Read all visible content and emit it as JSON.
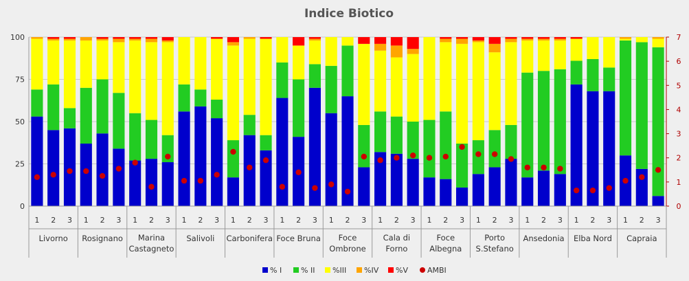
{
  "chart_data": {
    "type": "bar",
    "stacked": true,
    "title": "Indice Biotico",
    "y_left": {
      "range": [
        0,
        100
      ],
      "ticks": [
        "0",
        "25",
        "50",
        "75",
        "100"
      ]
    },
    "y_right": {
      "range": [
        0,
        7
      ],
      "ticks": [
        "0",
        "1",
        "2",
        "3",
        "4",
        "5",
        "6",
        "7"
      ]
    },
    "grid": "horizontal",
    "legend_position": "bottom",
    "sites": [
      {
        "name": [
          "Livorno"
        ]
      },
      {
        "name": [
          "Rosignano"
        ]
      },
      {
        "name": [
          "Marina",
          "Castagneto"
        ]
      },
      {
        "name": [
          "Salivoli"
        ]
      },
      {
        "name": [
          "Carbonifera"
        ]
      },
      {
        "name": [
          "Foce Bruna"
        ]
      },
      {
        "name": [
          "Foce",
          "Ombrone"
        ]
      },
      {
        "name": [
          "Cala di",
          "Forno"
        ]
      },
      {
        "name": [
          "Foce",
          "Albegna"
        ]
      },
      {
        "name": [
          "Porto",
          "S.Stefano"
        ]
      },
      {
        "name": [
          "Ansedonia"
        ]
      },
      {
        "name": [
          "Elba Nord"
        ]
      },
      {
        "name": [
          "Capraia"
        ]
      }
    ],
    "replicates": [
      "1",
      "2",
      "3"
    ],
    "series": [
      {
        "name": "% I",
        "color": "#0000cc",
        "values": [
          53,
          45,
          46,
          37,
          43,
          34,
          27,
          28,
          26,
          56,
          59,
          52,
          17,
          42,
          33,
          64,
          41,
          70,
          55,
          65,
          23,
          32,
          31,
          28,
          17,
          16,
          11,
          19,
          23,
          28,
          17,
          21,
          19,
          72,
          68,
          68,
          30,
          22,
          6
        ]
      },
      {
        "name": "% II",
        "color": "#22cc22",
        "values": [
          16,
          27,
          12,
          33,
          32,
          33,
          28,
          23,
          16,
          16,
          10,
          11,
          22,
          12,
          9,
          21,
          34,
          14,
          28,
          30,
          25,
          24,
          22,
          22,
          34,
          40,
          26,
          20,
          22,
          20,
          62,
          59,
          62,
          14,
          19,
          14,
          68,
          75,
          88
        ]
      },
      {
        "name": "%III",
        "color": "#ffff00",
        "values": [
          30,
          26,
          40,
          28,
          23,
          30,
          43,
          46,
          55,
          28,
          31,
          36,
          56,
          45,
          57,
          15,
          20,
          14,
          17,
          5,
          48,
          36,
          35,
          40,
          49,
          41,
          59,
          58,
          46,
          49,
          19,
          18,
          17,
          13,
          13,
          18,
          1,
          3,
          5
        ]
      },
      {
        "name": "%IV",
        "color": "#ffa500",
        "values": [
          1,
          1,
          1,
          2,
          1,
          2,
          1,
          2,
          1,
          0,
          0,
          0,
          2,
          1,
          0,
          0,
          0,
          1,
          0,
          0,
          0,
          4,
          7,
          3,
          0,
          2,
          3,
          1,
          5,
          2,
          1,
          1,
          1,
          0,
          0,
          0,
          1,
          0,
          1
        ]
      },
      {
        "name": "%V",
        "color": "#ff0000",
        "values": [
          0,
          1,
          1,
          0,
          1,
          1,
          1,
          1,
          2,
          0,
          0,
          1,
          3,
          0,
          1,
          0,
          5,
          1,
          0,
          0,
          4,
          4,
          5,
          7,
          0,
          1,
          1,
          2,
          4,
          1,
          1,
          1,
          1,
          1,
          0,
          0,
          0,
          0,
          0
        ]
      }
    ],
    "ambi": {
      "name": "AMBI",
      "color": "#cc0000",
      "axis": "right",
      "values": [
        1.2,
        1.3,
        1.45,
        1.45,
        1.25,
        1.55,
        1.8,
        0.8,
        2.05,
        1.05,
        1.05,
        1.3,
        2.25,
        1.6,
        1.9,
        0.8,
        1.4,
        0.75,
        0.9,
        0.6,
        2.05,
        1.9,
        2.0,
        2.1,
        2.0,
        2.05,
        2.45,
        2.15,
        2.15,
        1.95,
        1.6,
        1.6,
        1.55,
        0.65,
        0.65,
        0.75,
        1.05,
        1.2,
        1.5
      ]
    }
  }
}
